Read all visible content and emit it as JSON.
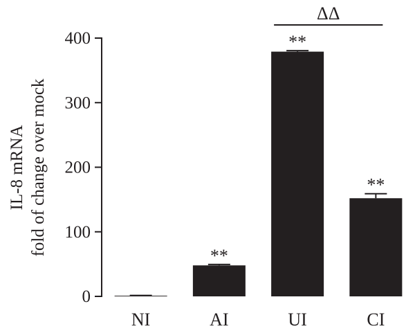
{
  "chart_data": {
    "type": "bar",
    "categories": [
      "NI",
      "AI",
      "UI",
      "CI"
    ],
    "values": [
      1,
      48,
      379,
      152
    ],
    "errors": [
      0.5,
      1.5,
      1.5,
      7
    ],
    "significance": [
      "",
      "**",
      "**",
      "**"
    ],
    "ylabel_line1": "IL-8 mRNA",
    "ylabel_line2": "fold of change over mock",
    "ylim": [
      0,
      400
    ],
    "yticks": [
      "0",
      "100",
      "200",
      "300",
      "400"
    ],
    "bracket": {
      "from": "UI",
      "to": "CI",
      "label": "ΔΔ"
    },
    "bar_color": "#231f20",
    "grid": false
  }
}
